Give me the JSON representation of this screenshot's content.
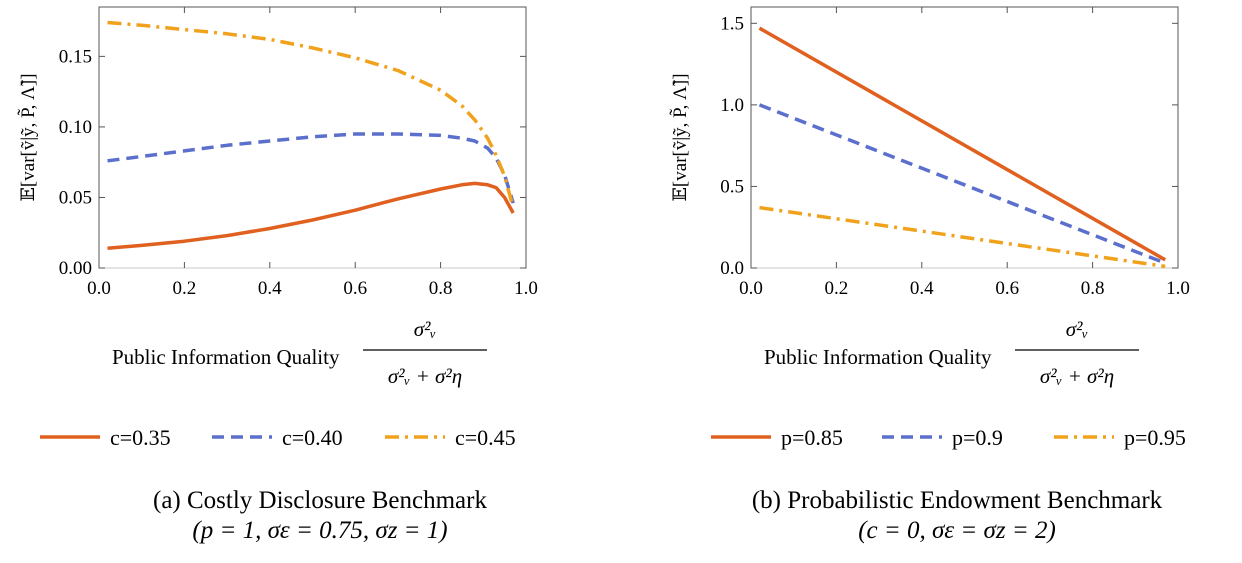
{
  "chart_data": [
    {
      "type": "line",
      "title": "",
      "xlabel": "Public Information Quality",
      "xlabel_fraction": {
        "numerator": "σ²ᵥ",
        "denominator": "σ²ᵥ + σ²η"
      },
      "ylabel": "𝔼[var[ṽ|ỹ, P̃, Λ̃]]",
      "xlim": [
        0.0,
        1.0
      ],
      "ylim": [
        0.0,
        0.185
      ],
      "xticks": [
        "0.0",
        "0.2",
        "0.4",
        "0.6",
        "0.8",
        "1.0"
      ],
      "xtick_values": [
        0.0,
        0.2,
        0.4,
        0.6,
        0.8,
        1.0
      ],
      "yticks": [
        "0.00",
        "0.05",
        "0.10",
        "0.15"
      ],
      "ytick_values": [
        0.0,
        0.05,
        0.1,
        0.15
      ],
      "grid": false,
      "legend_position": "bottom",
      "x": [
        0.02,
        0.1,
        0.2,
        0.3,
        0.4,
        0.5,
        0.6,
        0.7,
        0.8,
        0.85,
        0.88,
        0.91,
        0.93,
        0.95,
        0.97
      ],
      "series": [
        {
          "name": "c=0.35",
          "style": "solid",
          "color": "#E0601F",
          "values": [
            0.014,
            0.016,
            0.019,
            0.023,
            0.028,
            0.034,
            0.041,
            0.049,
            0.056,
            0.059,
            0.06,
            0.059,
            0.057,
            0.05,
            0.039
          ]
        },
        {
          "name": "c=0.40",
          "style": "dashed",
          "color": "#5B6FCC",
          "values": [
            0.076,
            0.079,
            0.083,
            0.087,
            0.09,
            0.093,
            0.095,
            0.095,
            0.094,
            0.092,
            0.09,
            0.085,
            0.078,
            0.066,
            0.046
          ]
        },
        {
          "name": "c=0.45",
          "style": "dashdot",
          "color": "#F1A21C",
          "values": [
            0.174,
            0.172,
            0.169,
            0.166,
            0.162,
            0.156,
            0.149,
            0.14,
            0.126,
            0.115,
            0.105,
            0.092,
            0.08,
            0.065,
            0.043
          ]
        }
      ]
    },
    {
      "type": "line",
      "title": "",
      "xlabel": "Public Information Quality",
      "xlabel_fraction": {
        "numerator": "σ²ᵥ",
        "denominator": "σ²ᵥ + σ²η"
      },
      "ylabel": "𝔼[var[ṽ|ỹ, P̃, Λ̃]]",
      "xlim": [
        0.0,
        1.0
      ],
      "ylim": [
        0.0,
        1.6
      ],
      "xticks": [
        "0.0",
        "0.2",
        "0.4",
        "0.6",
        "0.8",
        "1.0"
      ],
      "xtick_values": [
        0.0,
        0.2,
        0.4,
        0.6,
        0.8,
        1.0
      ],
      "yticks": [
        "0.0",
        "0.5",
        "1.0",
        "1.5"
      ],
      "ytick_values": [
        0.0,
        0.5,
        1.0,
        1.5
      ],
      "grid": false,
      "legend_position": "bottom",
      "x": [
        0.02,
        0.97
      ],
      "series": [
        {
          "name": "p=0.85",
          "style": "solid",
          "color": "#E0601F",
          "values": [
            1.47,
            0.05
          ]
        },
        {
          "name": "p=0.9",
          "style": "dashed",
          "color": "#5B6FCC",
          "values": [
            1.0,
            0.03
          ]
        },
        {
          "name": "p=0.95",
          "style": "dashdot",
          "color": "#F1A21C",
          "values": [
            0.37,
            0.01
          ]
        }
      ]
    }
  ],
  "captions": [
    {
      "title": "(a) Costly Disclosure Benchmark",
      "sub": "(p = 1, σε = 0.75, σz = 1)"
    },
    {
      "title": "(b) Probabilistic Endowment Benchmark",
      "sub": "(c = 0, σε = σz = 2)"
    }
  ]
}
